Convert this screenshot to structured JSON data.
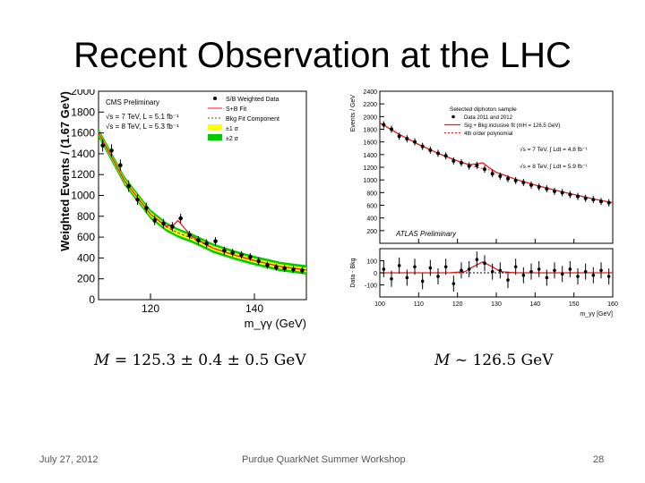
{
  "slide": {
    "title": "Recent Observation at the LHC",
    "footer_date": "July 27, 2012",
    "footer_event": "Purdue QuarkNet Summer Workshop",
    "page_number": "28"
  },
  "results": {
    "cms_mass_symbol": "M",
    "cms_mass_value": "= 125.3 ± 0.4 ± 0.5 GeV",
    "atlas_mass_symbol": "M",
    "atlas_mass_value": "~ 126.5 GeV"
  },
  "chart_data": [
    {
      "id": "cms",
      "type": "scatter",
      "title": "",
      "xlabel": "m_γγ (GeV)",
      "ylabel": "Weighted Events / (1.67 GeV)",
      "xlim": [
        110,
        150
      ],
      "ylim": [
        0,
        2000
      ],
      "x_ticks": [
        120,
        140
      ],
      "y_ticks": [
        0,
        200,
        400,
        600,
        800,
        1000,
        1200,
        1400,
        1600,
        1800,
        2000
      ],
      "legend_header": "CMS Preliminary",
      "legend_lines": [
        "√s = 7 TeV, L = 5.1 fb⁻¹",
        "√s = 8 TeV, L = 5.3 fb⁻¹"
      ],
      "legend": [
        "S/B Weighted Data",
        "S+B Fit",
        "Bkg Fit Component",
        "±1 σ",
        "±2 σ"
      ],
      "legend_placement": "top",
      "colors": {
        "data": "#000000",
        "sb_fit": "#e41a1c",
        "bkg_fit": "#444444",
        "band1": "#ffff00",
        "band2": "#00cc00"
      },
      "series": [
        {
          "name": "S/B Weighted Data",
          "x": [
            110.8,
            112.5,
            114.2,
            115.8,
            117.5,
            119.2,
            120.8,
            122.5,
            124.2,
            125.8,
            127.5,
            129.2,
            130.8,
            132.5,
            134.2,
            135.8,
            137.5,
            139.2,
            140.8,
            142.5,
            144.2,
            145.8,
            147.5,
            149.2
          ],
          "y": [
            1480,
            1430,
            1290,
            1090,
            960,
            880,
            760,
            730,
            700,
            780,
            620,
            570,
            540,
            560,
            470,
            450,
            430,
            410,
            370,
            330,
            310,
            300,
            290,
            280
          ],
          "err": [
            60,
            60,
            55,
            55,
            50,
            50,
            45,
            45,
            45,
            45,
            40,
            40,
            40,
            40,
            38,
            38,
            36,
            36,
            35,
            34,
            33,
            33,
            32,
            32
          ]
        }
      ],
      "fit": {
        "x": [
          110,
          115,
          120,
          123,
          124.5,
          125.3,
          126.3,
          128,
          132,
          136,
          140,
          145,
          150
        ],
        "sb": [
          1600,
          1140,
          820,
          705,
          720,
          760,
          700,
          605,
          495,
          430,
          375,
          318,
          285
        ],
        "bkg": [
          1600,
          1140,
          820,
          700,
          660,
          640,
          620,
          590,
          495,
          430,
          375,
          318,
          285
        ]
      }
    },
    {
      "id": "atlas",
      "type": "scatter",
      "title": "",
      "xlabel": "m_γγ [GeV]",
      "ylabel": "Events / GeV",
      "ratio_ylabel": "Data - Bkg",
      "xlim": [
        100,
        160
      ],
      "ylim": [
        0,
        2400
      ],
      "ratio_ylim": [
        -200,
        200
      ],
      "x_ticks": [
        100,
        110,
        120,
        130,
        140,
        150,
        160
      ],
      "y_ticks": [
        200,
        400,
        600,
        800,
        1000,
        1200,
        1400,
        1600,
        1800,
        2000,
        2200,
        2400
      ],
      "ratio_ticks": [
        -100,
        0,
        100
      ],
      "annotation": "ATLAS Preliminary",
      "legend_header": "Selected diphoton sample",
      "legend": [
        "Data 2011 and 2012",
        "Sig + Bkg inclusive fit (mH = 126.5 GeV)",
        "4th order polynomial"
      ],
      "legend_lines": [
        "√s = 7 TeV, ∫ Ldt = 4.8 fb⁻¹",
        "√s = 8 TeV, ∫ Ldt = 5.9 fb⁻¹"
      ],
      "legend_placement": "top-right",
      "colors": {
        "data": "#000000",
        "fit": "#e41a1c"
      },
      "series": [
        {
          "name": "Data 2011 and 2012",
          "x": [
            101,
            103,
            105,
            107,
            109,
            111,
            113,
            115,
            117,
            119,
            121,
            123,
            125,
            127,
            129,
            131,
            133,
            135,
            137,
            139,
            141,
            143,
            145,
            147,
            149,
            151,
            153,
            155,
            157,
            159
          ],
          "y": [
            1870,
            1800,
            1690,
            1650,
            1600,
            1530,
            1470,
            1420,
            1380,
            1300,
            1270,
            1220,
            1230,
            1170,
            1100,
            1060,
            1020,
            990,
            960,
            920,
            890,
            860,
            820,
            800,
            770,
            740,
            710,
            690,
            660,
            640
          ],
          "residual": [
            30,
            -50,
            60,
            -40,
            50,
            -70,
            40,
            -30,
            50,
            -90,
            20,
            30,
            110,
            80,
            10,
            20,
            -60,
            50,
            -20,
            10,
            30,
            -40,
            20,
            -10,
            30,
            -30,
            10,
            -20,
            20,
            -30
          ]
        }
      ],
      "fit": {
        "x": [
          100,
          105,
          110,
          115,
          120,
          123,
          125,
          126.5,
          128,
          130,
          135,
          140,
          145,
          150,
          155,
          160
        ],
        "sig_bkg": [
          1900,
          1720,
          1560,
          1420,
          1300,
          1240,
          1255,
          1270,
          1200,
          1120,
          1010,
          920,
          840,
          770,
          700,
          640
        ],
        "bkg": [
          1900,
          1720,
          1560,
          1420,
          1300,
          1240,
          1200,
          1180,
          1160,
          1120,
          1010,
          920,
          840,
          770,
          700,
          640
        ],
        "residual_bump_x": [
          100,
          118,
          122,
          124,
          126.5,
          129,
          131,
          135,
          160
        ],
        "residual_bump_y": [
          0,
          0,
          10,
          50,
          90,
          50,
          10,
          0,
          0
        ]
      }
    }
  ]
}
